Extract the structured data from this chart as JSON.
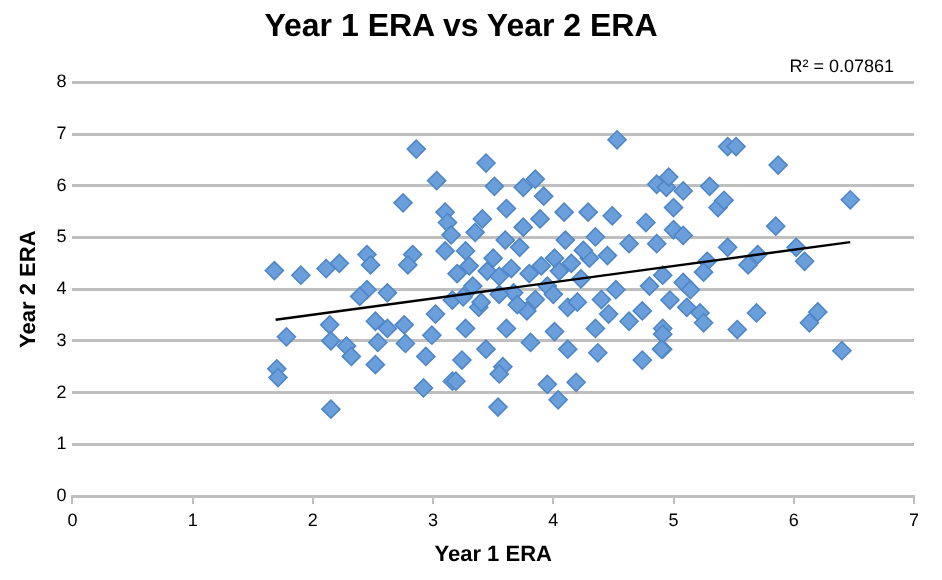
{
  "chart_data": {
    "type": "scatter",
    "title": "Year 1 ERA vs Year 2 ERA",
    "xlabel": "Year 1 ERA",
    "ylabel": "Year 2 ERA",
    "annotations": [
      "R² = 0.07861"
    ],
    "xlim": [
      0,
      7
    ],
    "xticks": [
      0,
      1,
      2,
      3,
      4,
      5,
      6,
      7
    ],
    "ylim": [
      0,
      8
    ],
    "yticks": [
      0,
      1,
      2,
      3,
      4,
      5,
      6,
      7,
      8
    ],
    "grid": "y",
    "marker": "diamond",
    "series": [
      {
        "type": "scatter",
        "color": "#6a9fdc",
        "x": [
          1.68,
          1.9,
          2.11,
          2.22,
          1.78,
          1.7,
          1.71,
          2.14,
          2.15,
          2.28,
          2.32,
          2.15,
          2.52,
          2.54,
          2.62,
          2.52,
          2.45,
          2.48,
          2.45,
          2.39,
          2.86,
          3.03,
          2.75,
          3.1,
          3.12,
          2.83,
          2.79,
          2.62,
          2.76,
          2.77,
          2.92,
          3.16,
          2.94,
          2.99,
          3.1,
          3.16,
          3.02,
          4.53,
          3.44,
          3.51,
          3.75,
          3.85,
          3.92,
          4.86,
          4.94,
          3.41,
          3.61,
          3.89,
          4.09,
          4.29,
          4.49,
          4.77,
          3.27,
          3.5,
          3.72,
          4.01,
          4.35,
          4.63,
          4.86,
          3.33,
          3.67,
          3.95,
          4.23,
          4.52,
          4.8,
          3.38,
          3.78,
          4.12,
          4.46,
          4.74,
          3.27,
          3.61,
          4.01,
          4.35,
          4.63,
          4.91,
          3.44,
          3.81,
          4.12,
          4.37,
          4.74,
          4.91,
          3.24,
          3.58,
          3.55,
          3.19,
          3.95,
          4.04,
          4.19,
          3.54,
          5.45,
          5.52,
          5.87,
          6.47,
          5.3,
          4.96,
          5.08,
          5.0,
          5.37,
          5.42,
          5.85,
          5.0,
          5.08,
          5.45,
          5.7,
          6.02,
          6.09,
          5.62,
          5.28,
          5.25,
          4.91,
          5.08,
          5.14,
          4.97,
          5.11,
          5.22,
          5.25,
          5.69,
          5.53,
          6.2,
          6.13,
          6.4,
          4.91,
          4.9,
          3.2,
          3.3,
          3.45,
          3.55,
          3.65,
          3.8,
          3.9,
          4.05,
          4.15,
          4.3,
          3.25,
          3.4,
          3.55,
          3.7,
          3.85,
          4.0,
          4.2,
          4.4,
          3.15,
          3.35,
          3.6,
          3.75,
          4.1,
          4.25,
          4.45
        ],
        "values": [
          4.36,
          4.27,
          4.4,
          4.5,
          3.08,
          2.46,
          2.29,
          3.31,
          3.0,
          2.9,
          2.7,
          1.68,
          2.54,
          2.97,
          3.24,
          3.38,
          4.67,
          4.47,
          3.99,
          3.86,
          6.71,
          6.1,
          5.67,
          5.49,
          5.29,
          4.67,
          4.47,
          3.93,
          3.31,
          2.95,
          2.09,
          2.22,
          2.7,
          3.11,
          4.74,
          3.79,
          3.52,
          6.89,
          6.44,
          5.99,
          5.97,
          6.13,
          5.8,
          6.03,
          5.97,
          5.36,
          5.56,
          5.36,
          5.49,
          5.49,
          5.42,
          5.29,
          4.74,
          4.6,
          4.81,
          4.6,
          5.01,
          4.88,
          4.88,
          4.06,
          3.93,
          4.06,
          4.2,
          3.99,
          4.06,
          3.65,
          3.58,
          3.65,
          3.52,
          3.58,
          3.24,
          3.24,
          3.18,
          3.24,
          3.38,
          3.24,
          2.84,
          2.97,
          2.84,
          2.77,
          2.63,
          2.84,
          2.63,
          2.5,
          2.36,
          2.22,
          2.16,
          1.86,
          2.2,
          1.72,
          6.76,
          6.76,
          6.4,
          5.73,
          5.99,
          6.17,
          5.9,
          5.58,
          5.58,
          5.72,
          5.22,
          5.15,
          5.04,
          4.81,
          4.67,
          4.81,
          4.54,
          4.47,
          4.54,
          4.33,
          4.27,
          4.13,
          3.99,
          3.79,
          3.65,
          3.54,
          3.35,
          3.54,
          3.22,
          3.56,
          3.35,
          2.81,
          3.13,
          2.84,
          4.3,
          4.45,
          4.35,
          4.25,
          4.4,
          4.3,
          4.45,
          4.35,
          4.5,
          4.6,
          3.85,
          3.75,
          3.9,
          3.7,
          3.8,
          3.9,
          3.75,
          3.8,
          5.05,
          5.1,
          4.95,
          5.2,
          4.95,
          4.75,
          4.65
        ]
      },
      {
        "type": "line",
        "color": "#000000",
        "marker": "none",
        "x": [
          1.69,
          6.47
        ],
        "values": [
          3.41,
          4.91
        ]
      }
    ]
  }
}
